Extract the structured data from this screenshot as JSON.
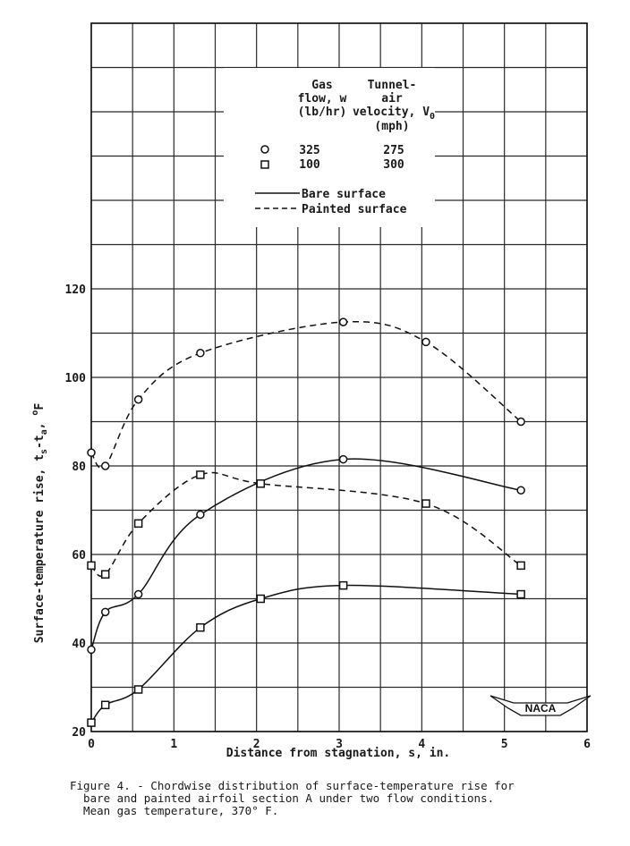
{
  "chart_data": {
    "type": "line",
    "xlabel": "Distance from stagnation, s, in.",
    "ylabel_main": "Surface-temperature rise, t",
    "ylabel_sub1": "s",
    "ylabel_mid": "-t",
    "ylabel_sub2": "a",
    "ylabel_end": ", ",
    "ylabel_sup": "o",
    "ylabel_unit": "F",
    "xlim": [
      0,
      6
    ],
    "ylim": [
      20,
      180
    ],
    "x_ticks": [
      "0",
      "1",
      "2",
      "3",
      "4",
      "5",
      "6"
    ],
    "y_ticks": [
      "20",
      "40",
      "60",
      "80",
      "100",
      "120"
    ],
    "legend": {
      "col1_header": [
        "Gas",
        "flow, w",
        "(lb/hr)"
      ],
      "col2_header": [
        "Tunnel-",
        "air",
        "velocity, V"
      ],
      "col2_header_sub": "0",
      "col2_unit": "(mph)",
      "rows": [
        {
          "marker": "circle",
          "flow": "325",
          "velocity": "275"
        },
        {
          "marker": "square",
          "flow": "100",
          "velocity": "300"
        }
      ],
      "line_styles": [
        {
          "style": "solid",
          "label": "Bare surface"
        },
        {
          "style": "dashed",
          "label": "Painted surface"
        }
      ]
    },
    "series": [
      {
        "marker": "circle",
        "line": "dashed",
        "points": [
          [
            0,
            83
          ],
          [
            0.17,
            80
          ],
          [
            0.57,
            95
          ],
          [
            1.32,
            105.5
          ],
          [
            3.05,
            112.5
          ],
          [
            4.05,
            108
          ],
          [
            5.2,
            90
          ]
        ]
      },
      {
        "marker": "circle",
        "line": "solid",
        "points": [
          [
            0,
            38.5
          ],
          [
            0.17,
            47
          ],
          [
            0.57,
            51
          ],
          [
            1.32,
            69
          ],
          [
            3.05,
            81.5
          ],
          [
            5.2,
            74.5
          ]
        ]
      },
      {
        "marker": "square",
        "line": "dashed",
        "points": [
          [
            0,
            57.5
          ],
          [
            0.17,
            55.5
          ],
          [
            0.57,
            67
          ],
          [
            1.32,
            78
          ],
          [
            2.05,
            76
          ],
          [
            4.05,
            71.5
          ],
          [
            5.2,
            57.5
          ]
        ]
      },
      {
        "marker": "square",
        "line": "solid",
        "points": [
          [
            0,
            22
          ],
          [
            0.17,
            26
          ],
          [
            0.57,
            29.5
          ],
          [
            1.32,
            43.5
          ],
          [
            2.05,
            50
          ],
          [
            3.05,
            53
          ],
          [
            5.2,
            51
          ]
        ]
      }
    ],
    "badge": "NACA"
  },
  "caption_lines": [
    "Figure 4. - Chordwise distribution of surface-temperature rise for",
    "  bare and painted airfoil section A under two flow conditions.",
    "  Mean gas temperature, 370° F."
  ],
  "colors": {
    "ink": "#1a1a1a",
    "grid": "#2a2a2a",
    "background": "#ffffff"
  }
}
